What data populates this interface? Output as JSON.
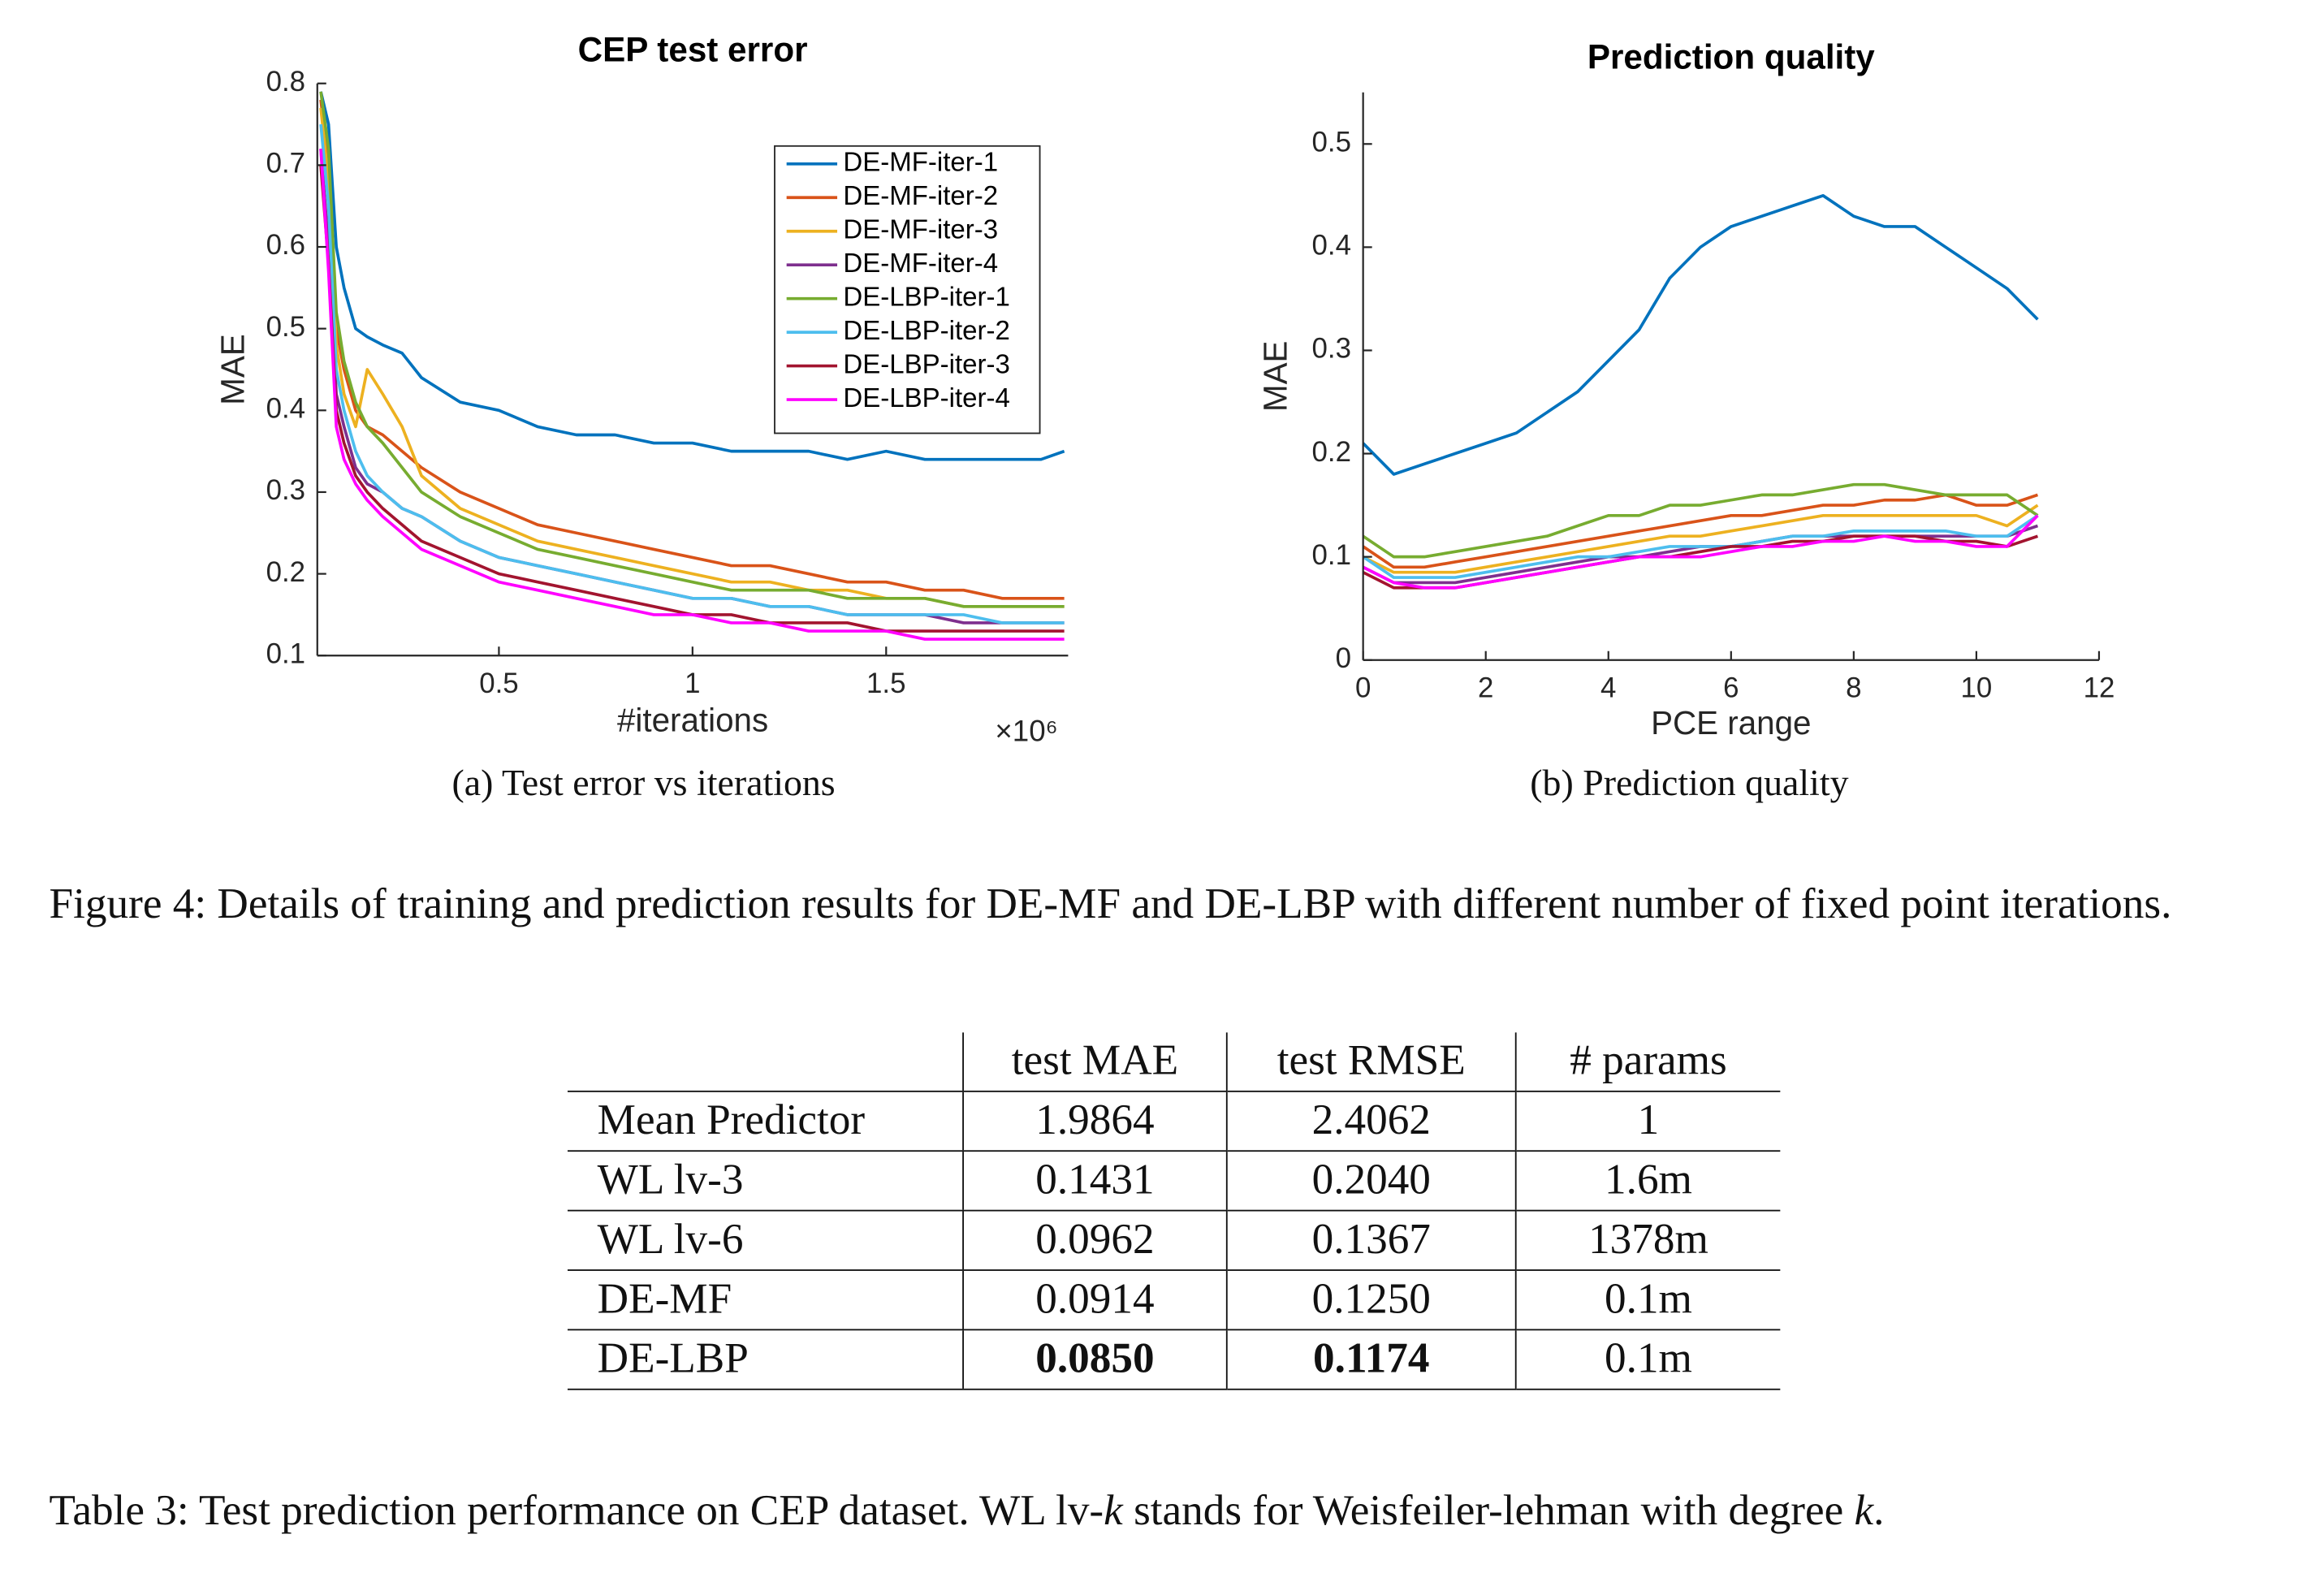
{
  "chart_data": [
    {
      "type": "line",
      "title": "CEP test error",
      "xlabel": "#iterations",
      "ylabel": "MAE",
      "x_exponent_label": "×10⁶",
      "caption": "(a) Test error vs iterations",
      "legend": "upper right",
      "xlim": [
        0.031,
        1.97
      ],
      "ylim": [
        0.1,
        0.8
      ],
      "xticks": [
        0.5,
        1,
        1.5
      ],
      "yticks": [
        0.1,
        0.2,
        0.3,
        0.4,
        0.5,
        0.6,
        0.7,
        0.8
      ],
      "x": [
        0.04,
        0.06,
        0.08,
        0.1,
        0.13,
        0.16,
        0.2,
        0.25,
        0.3,
        0.4,
        0.5,
        0.6,
        0.7,
        0.8,
        0.9,
        1.0,
        1.1,
        1.2,
        1.3,
        1.4,
        1.5,
        1.6,
        1.7,
        1.8,
        1.9,
        1.96
      ],
      "series": [
        {
          "name": "DE-MF-iter-1",
          "color": "#0072bd",
          "values": [
            0.79,
            0.75,
            0.6,
            0.55,
            0.5,
            0.49,
            0.48,
            0.47,
            0.44,
            0.41,
            0.4,
            0.38,
            0.37,
            0.37,
            0.36,
            0.36,
            0.35,
            0.35,
            0.35,
            0.34,
            0.35,
            0.34,
            0.34,
            0.34,
            0.34,
            0.35
          ]
        },
        {
          "name": "DE-MF-iter-2",
          "color": "#d95319",
          "values": [
            0.78,
            0.7,
            0.5,
            0.45,
            0.4,
            0.38,
            0.37,
            0.35,
            0.33,
            0.3,
            0.28,
            0.26,
            0.25,
            0.24,
            0.23,
            0.22,
            0.21,
            0.21,
            0.2,
            0.19,
            0.19,
            0.18,
            0.18,
            0.17,
            0.17,
            0.17
          ]
        },
        {
          "name": "DE-MF-iter-3",
          "color": "#edb120",
          "values": [
            0.77,
            0.68,
            0.48,
            0.42,
            0.38,
            0.45,
            0.42,
            0.38,
            0.32,
            0.28,
            0.26,
            0.24,
            0.23,
            0.22,
            0.21,
            0.2,
            0.19,
            0.19,
            0.18,
            0.18,
            0.17,
            0.17,
            0.16,
            0.16,
            0.16,
            0.16
          ]
        },
        {
          "name": "DE-MF-iter-4",
          "color": "#7e2f8e",
          "values": [
            0.72,
            0.6,
            0.42,
            0.38,
            0.33,
            0.31,
            0.3,
            0.28,
            0.27,
            0.24,
            0.22,
            0.21,
            0.2,
            0.19,
            0.18,
            0.17,
            0.17,
            0.16,
            0.16,
            0.15,
            0.15,
            0.15,
            0.14,
            0.14,
            0.14,
            0.14
          ]
        },
        {
          "name": "DE-LBP-iter-1",
          "color": "#77ac30",
          "values": [
            0.79,
            0.72,
            0.52,
            0.46,
            0.41,
            0.38,
            0.36,
            0.33,
            0.3,
            0.27,
            0.25,
            0.23,
            0.22,
            0.21,
            0.2,
            0.19,
            0.18,
            0.18,
            0.18,
            0.17,
            0.17,
            0.17,
            0.16,
            0.16,
            0.16,
            0.16
          ]
        },
        {
          "name": "DE-LBP-iter-2",
          "color": "#4dbeee",
          "values": [
            0.75,
            0.65,
            0.45,
            0.4,
            0.35,
            0.32,
            0.3,
            0.28,
            0.27,
            0.24,
            0.22,
            0.21,
            0.2,
            0.19,
            0.18,
            0.17,
            0.17,
            0.16,
            0.16,
            0.15,
            0.15,
            0.15,
            0.15,
            0.14,
            0.14,
            0.14
          ]
        },
        {
          "name": "DE-LBP-iter-3",
          "color": "#a2142f",
          "values": [
            0.7,
            0.58,
            0.4,
            0.36,
            0.32,
            0.3,
            0.28,
            0.26,
            0.24,
            0.22,
            0.2,
            0.19,
            0.18,
            0.17,
            0.16,
            0.15,
            0.15,
            0.14,
            0.14,
            0.14,
            0.13,
            0.13,
            0.13,
            0.13,
            0.13,
            0.13
          ]
        },
        {
          "name": "DE-LBP-iter-4",
          "color": "#ff00ff",
          "values": [
            0.72,
            0.57,
            0.38,
            0.34,
            0.31,
            0.29,
            0.27,
            0.25,
            0.23,
            0.21,
            0.19,
            0.18,
            0.17,
            0.16,
            0.15,
            0.15,
            0.14,
            0.14,
            0.13,
            0.13,
            0.13,
            0.12,
            0.12,
            0.12,
            0.12,
            0.12
          ]
        }
      ]
    },
    {
      "type": "line",
      "title": "Prediction quality",
      "xlabel": "PCE range",
      "ylabel": "MAE",
      "caption": "(b) Prediction quality",
      "xlim": [
        0,
        12
      ],
      "ylim": [
        0,
        0.55
      ],
      "xticks": [
        0,
        2,
        4,
        6,
        8,
        10,
        12
      ],
      "yticks": [
        0,
        0.1,
        0.2,
        0.3,
        0.4,
        0.5
      ],
      "x": [
        0,
        0.5,
        1,
        1.5,
        2,
        2.5,
        3,
        3.5,
        4,
        4.5,
        5,
        5.5,
        6,
        6.5,
        7,
        7.5,
        8,
        8.5,
        9,
        9.5,
        10,
        10.5,
        11
      ],
      "series": [
        {
          "color": "#0072bd",
          "values": [
            0.21,
            0.18,
            0.19,
            0.2,
            0.21,
            0.22,
            0.24,
            0.26,
            0.29,
            0.32,
            0.37,
            0.4,
            0.42,
            0.43,
            0.44,
            0.45,
            0.43,
            0.42,
            0.42,
            0.4,
            0.38,
            0.36,
            0.33
          ]
        },
        {
          "color": "#d95319",
          "values": [
            0.11,
            0.09,
            0.09,
            0.095,
            0.1,
            0.105,
            0.11,
            0.115,
            0.12,
            0.125,
            0.13,
            0.135,
            0.14,
            0.14,
            0.145,
            0.15,
            0.15,
            0.155,
            0.155,
            0.16,
            0.15,
            0.15,
            0.16
          ]
        },
        {
          "color": "#edb120",
          "values": [
            0.1,
            0.085,
            0.085,
            0.085,
            0.09,
            0.095,
            0.1,
            0.105,
            0.11,
            0.115,
            0.12,
            0.12,
            0.125,
            0.13,
            0.135,
            0.14,
            0.14,
            0.14,
            0.14,
            0.14,
            0.14,
            0.13,
            0.15
          ]
        },
        {
          "color": "#7e2f8e",
          "values": [
            0.09,
            0.075,
            0.075,
            0.075,
            0.08,
            0.085,
            0.09,
            0.095,
            0.1,
            0.1,
            0.105,
            0.11,
            0.11,
            0.115,
            0.12,
            0.12,
            0.12,
            0.12,
            0.12,
            0.12,
            0.12,
            0.12,
            0.13
          ]
        },
        {
          "color": "#77ac30",
          "values": [
            0.12,
            0.1,
            0.1,
            0.105,
            0.11,
            0.115,
            0.12,
            0.13,
            0.14,
            0.14,
            0.15,
            0.15,
            0.155,
            0.16,
            0.16,
            0.165,
            0.17,
            0.17,
            0.165,
            0.16,
            0.16,
            0.16,
            0.14
          ]
        },
        {
          "color": "#4dbeee",
          "values": [
            0.1,
            0.08,
            0.08,
            0.08,
            0.085,
            0.09,
            0.095,
            0.1,
            0.1,
            0.105,
            0.11,
            0.11,
            0.11,
            0.115,
            0.12,
            0.12,
            0.125,
            0.125,
            0.125,
            0.125,
            0.12,
            0.12,
            0.14
          ]
        },
        {
          "color": "#a2142f",
          "values": [
            0.085,
            0.07,
            0.07,
            0.07,
            0.075,
            0.08,
            0.085,
            0.09,
            0.095,
            0.1,
            0.1,
            0.105,
            0.11,
            0.11,
            0.115,
            0.115,
            0.12,
            0.12,
            0.12,
            0.115,
            0.115,
            0.11,
            0.12
          ]
        },
        {
          "color": "#ff00ff",
          "values": [
            0.09,
            0.075,
            0.07,
            0.07,
            0.075,
            0.08,
            0.085,
            0.09,
            0.095,
            0.1,
            0.1,
            0.1,
            0.105,
            0.11,
            0.11,
            0.115,
            0.115,
            0.12,
            0.115,
            0.115,
            0.11,
            0.11,
            0.14
          ]
        }
      ]
    }
  ],
  "figure_caption": "Figure 4: Details of training and prediction results for DE-MF and DE-LBP with different number of fixed point iterations.",
  "table": {
    "header": [
      "test MAE",
      "test RMSE",
      "# params"
    ],
    "rows": [
      [
        "Mean Predictor",
        "1.9864",
        "2.4062",
        "1"
      ],
      [
        "WL lv-3",
        "0.1431",
        "0.2040",
        "1.6m"
      ],
      [
        "WL lv-6",
        "0.0962",
        "0.1367",
        "1378m"
      ],
      [
        "DE-MF",
        "0.0914",
        "0.1250",
        "0.1m"
      ],
      [
        "DE-LBP",
        "0.0850",
        "0.1174",
        "0.1m"
      ]
    ],
    "bold": {
      "row": 4,
      "cols": [
        1,
        2
      ]
    }
  },
  "table_caption": [
    "Table 3: Test prediction performance on CEP dataset. WL lv-",
    "k",
    " stands for Weisfeiler-lehman with degree ",
    "k",
    "."
  ]
}
